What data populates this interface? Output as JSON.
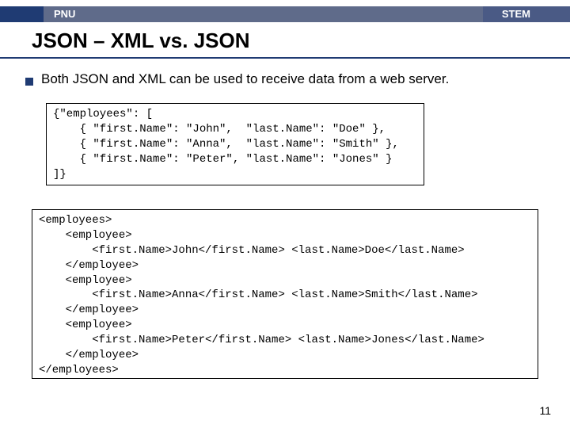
{
  "header": {
    "left": "PNU",
    "right": "STEM",
    "navy_color": "#1f3b73",
    "grey_color": "#5f6b8a"
  },
  "title": "JSON – XML vs. JSON",
  "bullet": "Both JSON and XML can be used to receive data from a web server.",
  "code_json": "{\"employees\": [\n    { \"first.Name\": \"John\",  \"last.Name\": \"Doe\" },\n    { \"first.Name\": \"Anna\",  \"last.Name\": \"Smith\" },\n    { \"first.Name\": \"Peter\", \"last.Name\": \"Jones\" }\n]}",
  "code_xml": "<employees>\n    <employee>\n        <first.Name>John</first.Name> <last.Name>Doe</last.Name>\n    </employee>\n    <employee>\n        <first.Name>Anna</first.Name> <last.Name>Smith</last.Name>\n    </employee>\n    <employee>\n        <first.Name>Peter</first.Name> <last.Name>Jones</last.Name>\n    </employee>\n</employees>",
  "page_number": "11",
  "colors": {
    "accent": "#1f3b73",
    "text": "#000000",
    "background": "#ffffff"
  }
}
